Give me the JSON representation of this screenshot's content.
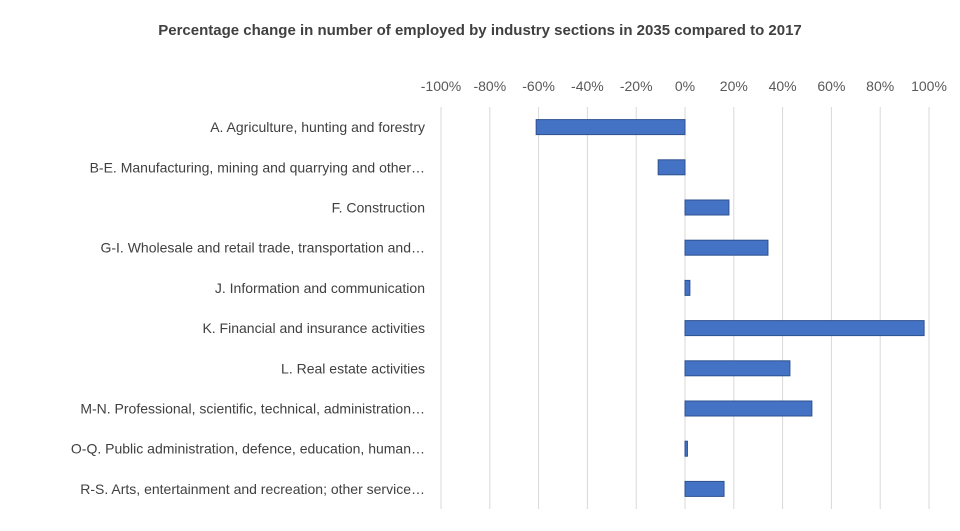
{
  "chart_data": {
    "type": "bar",
    "orientation": "horizontal",
    "title": "Percentage change in number of employed by industry sections in 2035 compared to 2017",
    "xlabel": "",
    "ylabel": "",
    "xlim": [
      -100,
      100
    ],
    "x_ticks": [
      "-100%",
      "-80%",
      "-60%",
      "-40%",
      "-20%",
      "0%",
      "20%",
      "40%",
      "60%",
      "80%",
      "100%"
    ],
    "grid": true,
    "legend": "none",
    "bar_color": "#4472C4",
    "categories": [
      "A. Agriculture, hunting and forestry",
      "B-E. Manufacturing, mining and quarrying and other…",
      "F. Construction",
      "G-I. Wholesale and retail trade, transportation and…",
      "J. Information and communication",
      "K. Financial and insurance activities",
      "L. Real estate activities",
      "M-N. Professional, scientific, technical, administration…",
      "O-Q. Public administration, defence, education, human…",
      "R-S. Arts, entertainment and recreation; other service…"
    ],
    "values": [
      -61,
      -11,
      18,
      34,
      2,
      98,
      43,
      52,
      1,
      16
    ]
  }
}
